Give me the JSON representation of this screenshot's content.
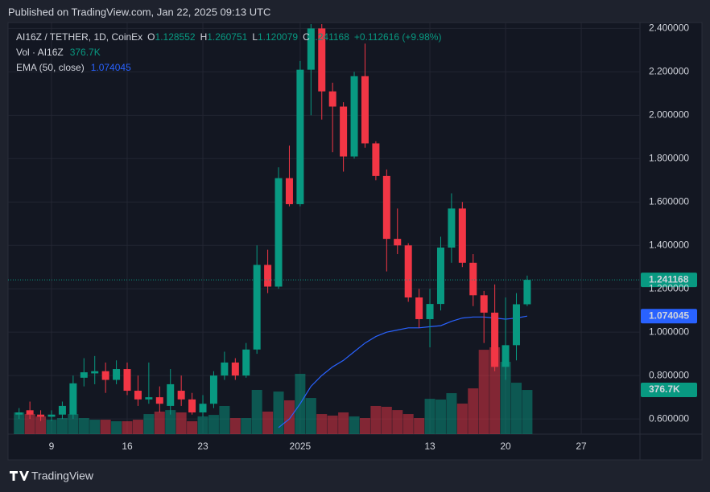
{
  "published": "Published on TradingView.com, Jan 22, 2025 09:13 UTC",
  "brand": "TradingView",
  "chart_data": {
    "type": "candlestick",
    "symbol": "AI16Z / TETHER, 1D, CoinEx",
    "ohlc_letters": [
      "O",
      "H",
      "L",
      "C"
    ],
    "change_label": "+0.112616 (+9.98%)",
    "volume_title": "Vol · AI16Z",
    "last_volume_label": "376.7K",
    "ema_title": "EMA (50, close)",
    "up_color": "#089981",
    "down_color": "#f23645",
    "ema_color": "#2962ff",
    "categories": [
      null,
      null,
      null,
      "9",
      null,
      null,
      null,
      null,
      null,
      null,
      "16",
      null,
      null,
      null,
      null,
      null,
      null,
      "23",
      null,
      null,
      null,
      null,
      null,
      null,
      null,
      null,
      "2025",
      null,
      null,
      null,
      null,
      null,
      null,
      null,
      null,
      null,
      null,
      null,
      "13",
      null,
      null,
      null,
      null,
      null,
      null,
      "20",
      null,
      null,
      null,
      null,
      null,
      null,
      "27"
    ],
    "open": [
      0.62,
      0.64,
      0.62,
      0.61,
      0.62,
      0.62,
      0.79,
      0.81,
      0.82,
      0.78,
      0.83,
      0.73,
      0.69,
      0.7,
      0.66,
      0.73,
      0.69,
      0.63,
      0.67,
      0.8,
      0.86,
      0.8,
      0.92,
      1.31,
      1.21,
      1.71,
      1.59,
      2.21,
      2.4,
      2.11,
      2.04,
      1.81,
      2.18,
      1.87,
      1.72,
      1.43,
      1.4,
      1.16,
      1.06,
      1.13,
      1.39,
      1.57,
      1.32,
      1.17,
      1.09,
      0.84,
      0.94,
      1.128552,
      null,
      null,
      null,
      null,
      null
    ],
    "high": [
      0.65,
      0.68,
      0.64,
      0.64,
      0.68,
      0.8,
      0.88,
      0.89,
      0.86,
      0.87,
      0.86,
      0.8,
      0.86,
      0.75,
      0.83,
      0.8,
      0.72,
      0.71,
      0.82,
      0.91,
      0.88,
      0.95,
      1.4,
      1.38,
      1.76,
      1.86,
      2.25,
      2.42,
      2.42,
      2.15,
      2.06,
      2.2,
      2.33,
      1.88,
      1.75,
      1.57,
      1.41,
      1.2,
      1.2,
      1.44,
      1.64,
      1.6,
      1.36,
      1.19,
      1.22,
      1.16,
      1.18,
      1.260751,
      null,
      null,
      null,
      null,
      null
    ],
    "low": [
      0.6,
      0.6,
      0.59,
      0.59,
      0.6,
      0.6,
      0.75,
      0.76,
      0.72,
      0.76,
      0.71,
      0.66,
      0.67,
      0.63,
      0.62,
      0.66,
      0.62,
      0.61,
      0.65,
      0.78,
      0.78,
      0.79,
      0.9,
      1.18,
      1.2,
      1.58,
      1.58,
      2.0,
      1.98,
      1.83,
      1.74,
      1.8,
      1.85,
      1.7,
      1.28,
      1.36,
      1.14,
      1.02,
      0.93,
      1.1,
      1.32,
      1.3,
      1.12,
      0.95,
      0.82,
      0.78,
      0.87,
      1.120079,
      null,
      null,
      null,
      null,
      null
    ],
    "close": [
      0.63,
      0.62,
      0.61,
      0.62,
      0.66,
      0.764,
      0.815,
      0.82,
      0.78,
      0.83,
      0.73,
      0.69,
      0.7,
      0.67,
      0.76,
      0.69,
      0.63,
      0.67,
      0.8,
      0.86,
      0.8,
      0.92,
      1.31,
      1.21,
      1.71,
      1.59,
      2.21,
      2.4,
      2.11,
      2.04,
      1.81,
      2.18,
      1.87,
      1.72,
      1.43,
      1.4,
      1.16,
      1.06,
      1.13,
      1.39,
      1.57,
      1.32,
      1.17,
      1.09,
      0.84,
      0.94,
      1.128552,
      1.241168,
      null,
      null,
      null,
      null,
      null
    ],
    "volume": [
      185000,
      171000,
      151000,
      123000,
      137000,
      171000,
      137000,
      123000,
      123000,
      110000,
      110000,
      123000,
      171000,
      192000,
      205000,
      185000,
      110000,
      151000,
      164000,
      240000,
      137000,
      137000,
      377000,
      192000,
      363000,
      288000,
      514000,
      308000,
      171000,
      158000,
      185000,
      151000,
      137000,
      240000,
      233000,
      205000,
      171000,
      137000,
      301000,
      295000,
      349000,
      260000,
      390000,
      719000,
      740000,
      616000,
      438000,
      376700,
      null,
      null,
      null,
      null,
      null
    ],
    "ema": [
      null,
      null,
      null,
      null,
      null,
      null,
      null,
      null,
      null,
      null,
      null,
      null,
      null,
      null,
      null,
      null,
      null,
      null,
      null,
      null,
      null,
      null,
      null,
      null,
      0.56,
      0.6,
      0.67,
      0.75,
      0.8,
      0.84,
      0.87,
      0.91,
      0.95,
      0.98,
      1.0,
      1.01,
      1.02,
      1.02,
      1.025,
      1.03,
      1.05,
      1.065,
      1.07,
      1.07,
      1.065,
      1.06,
      1.065,
      1.074045,
      null,
      null,
      null,
      null,
      null
    ],
    "ylim": [
      0.53,
      2.42
    ],
    "yticks": [
      {
        "value": 0.6,
        "label": "0.600000"
      },
      {
        "value": 0.8,
        "label": "0.800000"
      },
      {
        "value": 1.0,
        "label": "1.000000"
      },
      {
        "value": 1.2,
        "label": "1.200000"
      },
      {
        "value": 1.4,
        "label": "1.400000"
      },
      {
        "value": 1.6,
        "label": "1.600000"
      },
      {
        "value": 1.8,
        "label": "1.800000"
      },
      {
        "value": 2.0,
        "label": "2.000000"
      },
      {
        "value": 2.2,
        "label": "2.200000"
      },
      {
        "value": 2.4,
        "label": "2.400000"
      }
    ],
    "grid": true
  }
}
